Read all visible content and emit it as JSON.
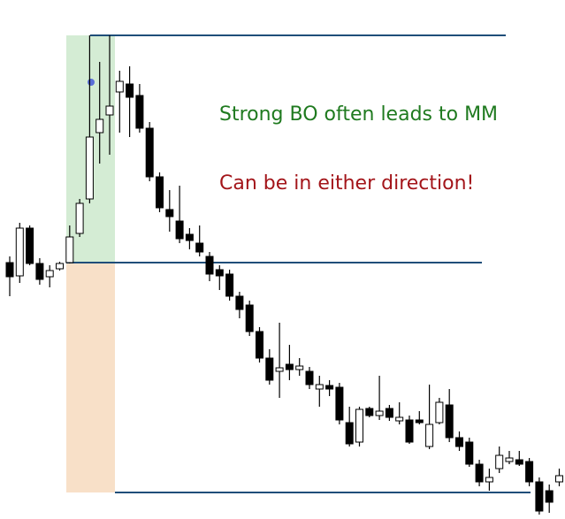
{
  "chart_data": {
    "type": "candlestick",
    "annotations": [
      "Strong BO often leads to MM",
      "Can be in either direction!"
    ],
    "annotation_colors": [
      "#1f7a1f",
      "#a3151a"
    ],
    "ylim": [
      0,
      587
    ],
    "levels": [
      547,
      290,
      30
    ],
    "level_color": "#1f4e79",
    "up_color": "#ffffff",
    "down_color": "#000000",
    "open": [
      290,
      275,
      329,
      289,
      274,
      283,
      290,
      323,
      362,
      437,
      457,
      483,
      492,
      479,
      442,
      387,
      350,
      337,
      322,
      312,
      297,
      282,
      277,
      252,
      242,
      212,
      182,
      167,
      175,
      169,
      167,
      147,
      151,
      149,
      109,
      87,
      125,
      117,
      125,
      111,
      112,
      112,
      82,
      109,
      129,
      92,
      87,
      62,
      42,
      57,
      65,
      67,
      65,
      42,
      32,
      42
    ],
    "high": [
      297,
      335,
      332,
      295,
      287,
      291,
      332,
      362,
      547,
      517,
      547,
      507,
      512,
      492,
      449,
      392,
      372,
      377,
      329,
      332,
      302,
      287,
      282,
      257,
      247,
      217,
      192,
      222,
      197,
      182,
      172,
      162,
      157,
      154,
      127,
      127,
      127,
      162,
      129,
      132,
      117,
      122,
      152,
      137,
      147,
      99,
      92,
      67,
      57,
      82,
      77,
      77,
      69,
      47,
      39,
      57
    ],
    "low": [
      252,
      267,
      287,
      265,
      262,
      281,
      289,
      319,
      357,
      402,
      412,
      437,
      432,
      437,
      382,
      347,
      325,
      312,
      305,
      297,
      269,
      259,
      247,
      227,
      207,
      177,
      152,
      137,
      157,
      162,
      147,
      127,
      139,
      107,
      82,
      82,
      115,
      112,
      111,
      107,
      85,
      107,
      79,
      107,
      87,
      77,
      59,
      37,
      32,
      52,
      62,
      60,
      37,
      5,
      7,
      37
    ],
    "close": [
      274,
      329,
      289,
      271,
      281,
      289,
      319,
      357,
      432,
      452,
      467,
      495,
      477,
      442,
      387,
      352,
      342,
      317,
      315,
      302,
      277,
      275,
      252,
      237,
      212,
      182,
      157,
      171,
      169,
      173,
      152,
      152,
      147,
      112,
      85,
      124,
      117,
      122,
      115,
      115,
      87,
      109,
      107,
      132,
      92,
      82,
      62,
      42,
      47,
      72,
      69,
      62,
      42,
      9,
      19,
      49
    ]
  }
}
